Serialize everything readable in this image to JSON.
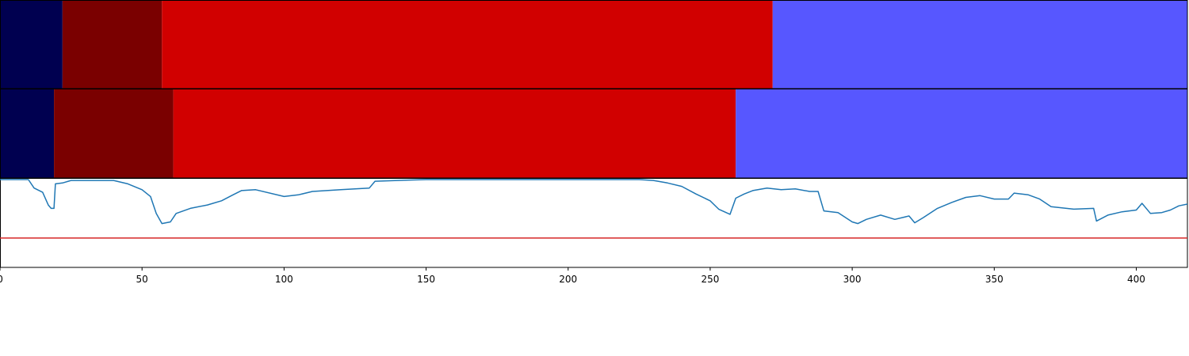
{
  "chart_data": {
    "type": "bar",
    "x_range": [
      0,
      418
    ],
    "x_ticks": [
      "0",
      "50",
      "100",
      "150",
      "200",
      "250",
      "300",
      "350",
      "400"
    ],
    "segment_bars": [
      {
        "segments": [
          {
            "start": 0,
            "end": 22,
            "color": "#000050"
          },
          {
            "start": 22,
            "end": 57,
            "color": "#7a0000"
          },
          {
            "start": 57,
            "end": 272,
            "color": "#d10000"
          },
          {
            "start": 272,
            "end": 418,
            "color": "#5757ff"
          }
        ]
      },
      {
        "segments": [
          {
            "start": 0,
            "end": 19,
            "color": "#000050"
          },
          {
            "start": 19,
            "end": 61,
            "color": "#7a0000"
          },
          {
            "start": 61,
            "end": 259,
            "color": "#d10000"
          },
          {
            "start": 259,
            "end": 418,
            "color": "#5757ff"
          }
        ]
      }
    ],
    "line_panel": {
      "y_range": [
        0,
        1
      ],
      "series_color": "#1f77b4",
      "threshold": 0.31,
      "threshold_color": "#d62728",
      "points": [
        [
          0,
          1.0
        ],
        [
          10,
          1.0
        ],
        [
          12,
          0.9
        ],
        [
          15,
          0.85
        ],
        [
          17,
          0.7
        ],
        [
          18,
          0.66
        ],
        [
          19,
          0.66
        ],
        [
          19.5,
          0.95
        ],
        [
          22,
          0.96
        ],
        [
          25,
          0.99
        ],
        [
          30,
          0.99
        ],
        [
          40,
          0.99
        ],
        [
          45,
          0.95
        ],
        [
          50,
          0.88
        ],
        [
          53,
          0.8
        ],
        [
          55,
          0.6
        ],
        [
          57,
          0.48
        ],
        [
          60,
          0.5
        ],
        [
          62,
          0.6
        ],
        [
          67,
          0.66
        ],
        [
          73,
          0.7
        ],
        [
          78,
          0.75
        ],
        [
          82,
          0.82
        ],
        [
          85,
          0.87
        ],
        [
          90,
          0.88
        ],
        [
          100,
          0.8
        ],
        [
          105,
          0.82
        ],
        [
          110,
          0.86
        ],
        [
          120,
          0.88
        ],
        [
          130,
          0.9
        ],
        [
          132,
          0.98
        ],
        [
          140,
          0.99
        ],
        [
          150,
          1.0
        ],
        [
          195,
          1.0
        ],
        [
          225,
          1.0
        ],
        [
          230,
          0.99
        ],
        [
          235,
          0.96
        ],
        [
          240,
          0.92
        ],
        [
          245,
          0.83
        ],
        [
          250,
          0.75
        ],
        [
          253,
          0.65
        ],
        [
          257,
          0.59
        ],
        [
          259,
          0.78
        ],
        [
          262,
          0.83
        ],
        [
          265,
          0.87
        ],
        [
          270,
          0.9
        ],
        [
          275,
          0.88
        ],
        [
          280,
          0.89
        ],
        [
          285,
          0.86
        ],
        [
          288,
          0.86
        ],
        [
          290,
          0.63
        ],
        [
          295,
          0.61
        ],
        [
          300,
          0.5
        ],
        [
          302,
          0.48
        ],
        [
          305,
          0.53
        ],
        [
          310,
          0.58
        ],
        [
          315,
          0.53
        ],
        [
          320,
          0.57
        ],
        [
          322,
          0.49
        ],
        [
          325,
          0.55
        ],
        [
          330,
          0.66
        ],
        [
          335,
          0.73
        ],
        [
          340,
          0.79
        ],
        [
          345,
          0.81
        ],
        [
          350,
          0.77
        ],
        [
          355,
          0.77
        ],
        [
          357,
          0.84
        ],
        [
          362,
          0.82
        ],
        [
          366,
          0.77
        ],
        [
          370,
          0.68
        ],
        [
          378,
          0.65
        ],
        [
          385,
          0.66
        ],
        [
          386,
          0.51
        ],
        [
          390,
          0.58
        ],
        [
          395,
          0.62
        ],
        [
          400,
          0.64
        ],
        [
          402,
          0.72
        ],
        [
          405,
          0.6
        ],
        [
          409,
          0.61
        ],
        [
          412,
          0.64
        ],
        [
          415,
          0.69
        ],
        [
          418,
          0.71
        ]
      ]
    }
  }
}
